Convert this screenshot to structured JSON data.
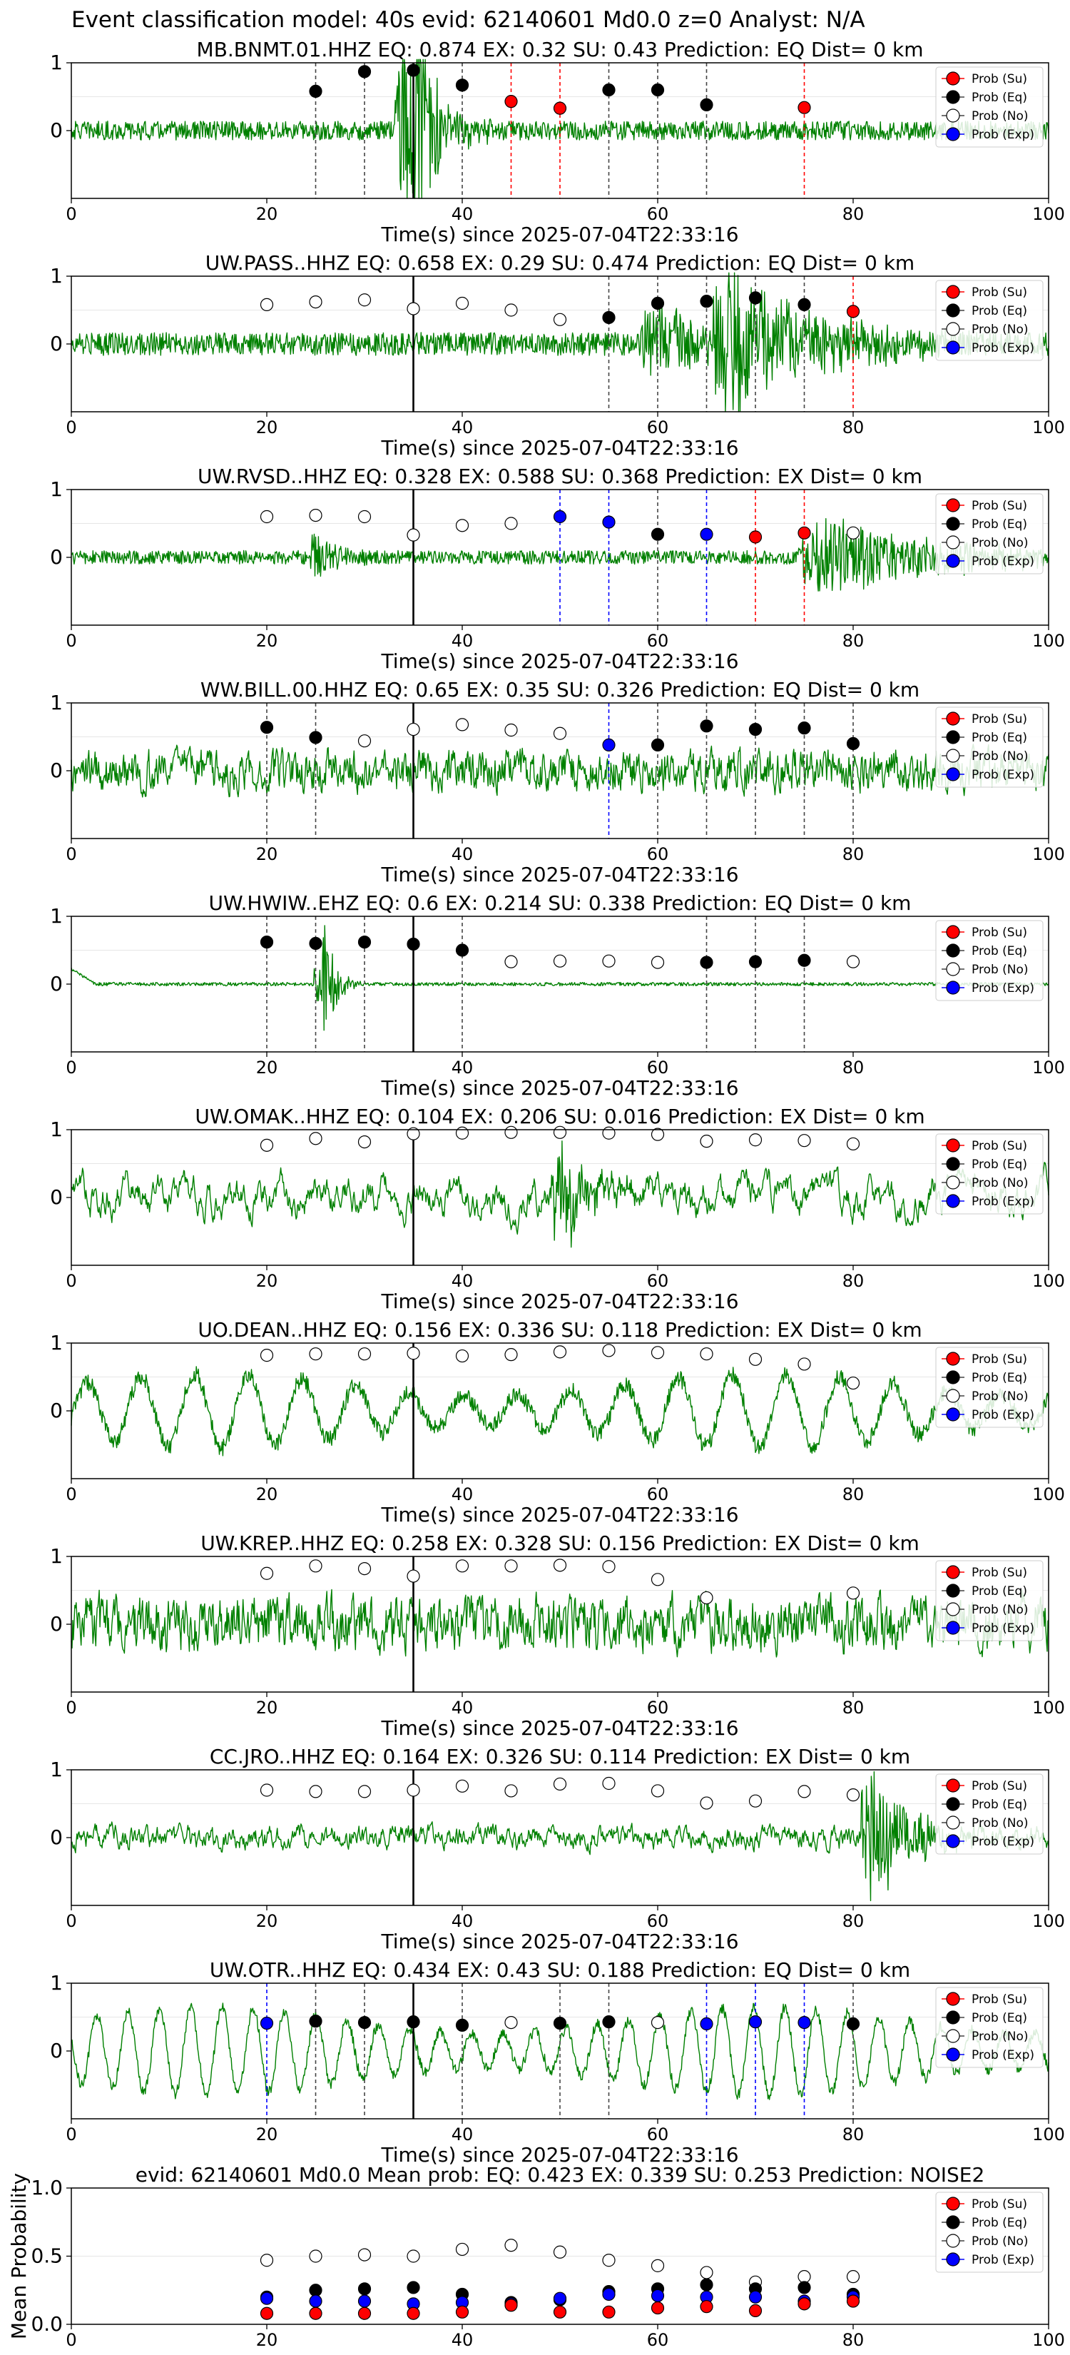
{
  "figure_title": "Event classification model: 40s evid: 62140601 Md0.0 z=0 Analyst: N/A",
  "legend_labels": [
    "Prob (Su)",
    "Prob (Eq)",
    "Prob (No)",
    "Prob (Exp)"
  ],
  "colors": {
    "su": "#ff0000",
    "eq": "#000000",
    "no": "#ffffff",
    "exp": "#0000ff",
    "waveform": "#008000",
    "pick_line": "#000000",
    "grid": "#e6e6e6"
  },
  "chart_data": [
    {
      "type": "line",
      "title": "MB.BNMT.01.HHZ   EQ: 0.874  EX: 0.32  SU: 0.43   Prediction: EQ    Dist= 0 km",
      "xlabel": "Time(s) since 2025-07-04T22:33:16",
      "xlim": [
        0,
        100
      ],
      "ylim": [
        -1,
        1
      ],
      "xticks": [
        "0",
        "20",
        "40",
        "60",
        "80",
        "100"
      ],
      "yticks": [
        "0",
        "1"
      ],
      "pick_time": 35,
      "waveform": {
        "noise": 0.14,
        "smooth": 1,
        "events": [
          {
            "t": 34,
            "a": 0.9,
            "d": 3
          },
          {
            "t": 35.5,
            "a": 1.3,
            "d": 1.5
          }
        ]
      },
      "points": [
        {
          "x": 25,
          "y": 0.58,
          "cls": "eq"
        },
        {
          "x": 30,
          "y": 0.87,
          "cls": "eq"
        },
        {
          "x": 35,
          "y": 0.89,
          "cls": "eq"
        },
        {
          "x": 40,
          "y": 0.67,
          "cls": "eq"
        },
        {
          "x": 45,
          "y": 0.43,
          "cls": "su"
        },
        {
          "x": 50,
          "y": 0.33,
          "cls": "su"
        },
        {
          "x": 55,
          "y": 0.6,
          "cls": "eq"
        },
        {
          "x": 60,
          "y": 0.6,
          "cls": "eq"
        },
        {
          "x": 65,
          "y": 0.38,
          "cls": "eq"
        },
        {
          "x": 75,
          "y": 0.34,
          "cls": "su"
        }
      ]
    },
    {
      "type": "line",
      "title": "UW.PASS..HHZ   EQ: 0.658  EX: 0.29  SU: 0.474   Prediction: EQ    Dist= 0 km",
      "xlabel": "Time(s) since 2025-07-04T22:33:16",
      "xlim": [
        0,
        100
      ],
      "ylim": [
        -1,
        1
      ],
      "xticks": [
        "0",
        "20",
        "40",
        "60",
        "80",
        "100"
      ],
      "yticks": [
        "0",
        "1"
      ],
      "pick_time": 35,
      "waveform": {
        "noise": 0.17,
        "smooth": 1,
        "events": [
          {
            "t": 68,
            "a": 0.7,
            "d": 8
          },
          {
            "t": 60,
            "a": 0.35,
            "d": 6
          }
        ]
      },
      "points": [
        {
          "x": 20,
          "y": 0.58,
          "cls": "no"
        },
        {
          "x": 25,
          "y": 0.62,
          "cls": "no"
        },
        {
          "x": 30,
          "y": 0.65,
          "cls": "no"
        },
        {
          "x": 35,
          "y": 0.52,
          "cls": "no"
        },
        {
          "x": 40,
          "y": 0.6,
          "cls": "no"
        },
        {
          "x": 45,
          "y": 0.5,
          "cls": "no"
        },
        {
          "x": 50,
          "y": 0.36,
          "cls": "no"
        },
        {
          "x": 55,
          "y": 0.39,
          "cls": "eq"
        },
        {
          "x": 60,
          "y": 0.6,
          "cls": "eq"
        },
        {
          "x": 65,
          "y": 0.63,
          "cls": "eq"
        },
        {
          "x": 70,
          "y": 0.68,
          "cls": "eq"
        },
        {
          "x": 75,
          "y": 0.58,
          "cls": "eq"
        },
        {
          "x": 80,
          "y": 0.48,
          "cls": "su"
        }
      ]
    },
    {
      "type": "line",
      "title": "UW.RVSD..HHZ   EQ: 0.328  EX: 0.588  SU: 0.368   Prediction: EX    Dist= 0 km",
      "xlabel": "Time(s) since 2025-07-04T22:33:16",
      "xlim": [
        0,
        100
      ],
      "ylim": [
        -1,
        1
      ],
      "xticks": [
        "0",
        "20",
        "40",
        "60",
        "80",
        "100"
      ],
      "yticks": [
        "0",
        "1"
      ],
      "pick_time": 35,
      "waveform": {
        "noise": 0.1,
        "smooth": 1,
        "events": [
          {
            "t": 78,
            "a": 0.35,
            "d": 12
          },
          {
            "t": 25,
            "a": 0.25,
            "d": 2
          }
        ]
      },
      "points": [
        {
          "x": 20,
          "y": 0.6,
          "cls": "no"
        },
        {
          "x": 25,
          "y": 0.62,
          "cls": "no"
        },
        {
          "x": 30,
          "y": 0.6,
          "cls": "no"
        },
        {
          "x": 35,
          "y": 0.33,
          "cls": "no"
        },
        {
          "x": 40,
          "y": 0.47,
          "cls": "no"
        },
        {
          "x": 45,
          "y": 0.5,
          "cls": "no"
        },
        {
          "x": 50,
          "y": 0.6,
          "cls": "exp"
        },
        {
          "x": 55,
          "y": 0.52,
          "cls": "exp"
        },
        {
          "x": 60,
          "y": 0.34,
          "cls": "eq"
        },
        {
          "x": 65,
          "y": 0.34,
          "cls": "exp"
        },
        {
          "x": 70,
          "y": 0.3,
          "cls": "su"
        },
        {
          "x": 75,
          "y": 0.36,
          "cls": "su"
        },
        {
          "x": 80,
          "y": 0.36,
          "cls": "no"
        }
      ]
    },
    {
      "type": "line",
      "title": "WW.BILL.00.HHZ   EQ: 0.65  EX: 0.35  SU: 0.326   Prediction: EQ    Dist= 0 km",
      "xlabel": "Time(s) since 2025-07-04T22:33:16",
      "xlim": [
        0,
        100
      ],
      "ylim": [
        -1,
        1
      ],
      "xticks": [
        "0",
        "20",
        "40",
        "60",
        "80",
        "100"
      ],
      "yticks": [
        "0",
        "1"
      ],
      "pick_time": 35,
      "waveform": {
        "noise": 0.38,
        "smooth": 2,
        "events": []
      },
      "points": [
        {
          "x": 20,
          "y": 0.64,
          "cls": "eq"
        },
        {
          "x": 25,
          "y": 0.49,
          "cls": "eq"
        },
        {
          "x": 30,
          "y": 0.44,
          "cls": "no"
        },
        {
          "x": 35,
          "y": 0.61,
          "cls": "no"
        },
        {
          "x": 40,
          "y": 0.68,
          "cls": "no"
        },
        {
          "x": 45,
          "y": 0.6,
          "cls": "no"
        },
        {
          "x": 50,
          "y": 0.55,
          "cls": "no"
        },
        {
          "x": 55,
          "y": 0.38,
          "cls": "exp"
        },
        {
          "x": 60,
          "y": 0.38,
          "cls": "eq"
        },
        {
          "x": 65,
          "y": 0.66,
          "cls": "eq"
        },
        {
          "x": 70,
          "y": 0.61,
          "cls": "eq"
        },
        {
          "x": 75,
          "y": 0.63,
          "cls": "eq"
        },
        {
          "x": 80,
          "y": 0.4,
          "cls": "eq"
        }
      ]
    },
    {
      "type": "line",
      "title": "UW.HWIW..EHZ   EQ: 0.6  EX: 0.214  SU: 0.338   Prediction: EQ    Dist= 0 km",
      "xlabel": "Time(s) since 2025-07-04T22:33:16",
      "xlim": [
        0,
        100
      ],
      "ylim": [
        -1,
        1
      ],
      "xticks": [
        "0",
        "20",
        "40",
        "60",
        "80",
        "100"
      ],
      "yticks": [
        "0",
        "1"
      ],
      "pick_time": 35,
      "waveform": {
        "noise": 0.025,
        "smooth": 1,
        "start": 0.22,
        "events": [
          {
            "t": 26,
            "a": 0.55,
            "d": 1.2
          },
          {
            "t": 25,
            "a": 0.3,
            "d": 0.6
          }
        ]
      },
      "points": [
        {
          "x": 20,
          "y": 0.62,
          "cls": "eq"
        },
        {
          "x": 25,
          "y": 0.6,
          "cls": "eq"
        },
        {
          "x": 30,
          "y": 0.62,
          "cls": "eq"
        },
        {
          "x": 35,
          "y": 0.59,
          "cls": "eq"
        },
        {
          "x": 40,
          "y": 0.5,
          "cls": "eq"
        },
        {
          "x": 45,
          "y": 0.33,
          "cls": "no"
        },
        {
          "x": 50,
          "y": 0.34,
          "cls": "no"
        },
        {
          "x": 55,
          "y": 0.34,
          "cls": "no"
        },
        {
          "x": 60,
          "y": 0.32,
          "cls": "no"
        },
        {
          "x": 65,
          "y": 0.32,
          "cls": "eq"
        },
        {
          "x": 70,
          "y": 0.33,
          "cls": "eq"
        },
        {
          "x": 75,
          "y": 0.35,
          "cls": "eq"
        },
        {
          "x": 80,
          "y": 0.33,
          "cls": "no"
        }
      ]
    },
    {
      "type": "line",
      "title": "UW.OMAK..HHZ   EQ: 0.104  EX: 0.206  SU: 0.016   Prediction: EX    Dist= 0 km",
      "xlabel": "Time(s) since 2025-07-04T22:33:16",
      "xlim": [
        0,
        100
      ],
      "ylim": [
        -1,
        1
      ],
      "xticks": [
        "0",
        "20",
        "40",
        "60",
        "80",
        "100"
      ],
      "yticks": [
        "0",
        "1"
      ],
      "pick_time": 35,
      "waveform": {
        "noise": 0.45,
        "smooth": 7,
        "events": [
          {
            "t": 50,
            "a": 0.5,
            "d": 3
          }
        ]
      },
      "points": [
        {
          "x": 20,
          "y": 0.77,
          "cls": "no"
        },
        {
          "x": 25,
          "y": 0.87,
          "cls": "no"
        },
        {
          "x": 30,
          "y": 0.82,
          "cls": "no"
        },
        {
          "x": 35,
          "y": 0.94,
          "cls": "no"
        },
        {
          "x": 40,
          "y": 0.95,
          "cls": "no"
        },
        {
          "x": 45,
          "y": 0.96,
          "cls": "no"
        },
        {
          "x": 50,
          "y": 0.96,
          "cls": "no"
        },
        {
          "x": 55,
          "y": 0.95,
          "cls": "no"
        },
        {
          "x": 60,
          "y": 0.93,
          "cls": "no"
        },
        {
          "x": 65,
          "y": 0.83,
          "cls": "no"
        },
        {
          "x": 70,
          "y": 0.85,
          "cls": "no"
        },
        {
          "x": 75,
          "y": 0.84,
          "cls": "no"
        },
        {
          "x": 80,
          "y": 0.79,
          "cls": "no"
        }
      ]
    },
    {
      "type": "line",
      "title": "UO.DEAN..HHZ   EQ: 0.156  EX: 0.336  SU: 0.118   Prediction: EX    Dist= 0 km",
      "xlabel": "Time(s) since 2025-07-04T22:33:16",
      "xlim": [
        0,
        100
      ],
      "ylim": [
        -1,
        1
      ],
      "xticks": [
        "0",
        "20",
        "40",
        "60",
        "80",
        "100"
      ],
      "yticks": [
        "0",
        "1"
      ],
      "pick_time": 35,
      "waveform": {
        "noise": 0.12,
        "smooth": 1,
        "wave": 0.55,
        "period": 5.5,
        "events": []
      },
      "points": [
        {
          "x": 20,
          "y": 0.82,
          "cls": "no"
        },
        {
          "x": 25,
          "y": 0.84,
          "cls": "no"
        },
        {
          "x": 30,
          "y": 0.84,
          "cls": "no"
        },
        {
          "x": 35,
          "y": 0.85,
          "cls": "no"
        },
        {
          "x": 40,
          "y": 0.81,
          "cls": "no"
        },
        {
          "x": 45,
          "y": 0.83,
          "cls": "no"
        },
        {
          "x": 50,
          "y": 0.87,
          "cls": "no"
        },
        {
          "x": 55,
          "y": 0.89,
          "cls": "no"
        },
        {
          "x": 60,
          "y": 0.86,
          "cls": "no"
        },
        {
          "x": 65,
          "y": 0.84,
          "cls": "no"
        },
        {
          "x": 70,
          "y": 0.76,
          "cls": "no"
        },
        {
          "x": 75,
          "y": 0.69,
          "cls": "no"
        },
        {
          "x": 80,
          "y": 0.41,
          "cls": "no"
        }
      ]
    },
    {
      "type": "line",
      "title": "UW.KREP..HHZ   EQ: 0.258  EX: 0.328  SU: 0.156   Prediction: EX    Dist= 0 km",
      "xlabel": "Time(s) since 2025-07-04T22:33:16",
      "xlim": [
        0,
        100
      ],
      "ylim": [
        -1,
        1
      ],
      "xticks": [
        "0",
        "20",
        "40",
        "60",
        "80",
        "100"
      ],
      "yticks": [
        "0",
        "1"
      ],
      "pick_time": 35,
      "waveform": {
        "noise": 0.5,
        "smooth": 2,
        "events": []
      },
      "points": [
        {
          "x": 20,
          "y": 0.75,
          "cls": "no"
        },
        {
          "x": 25,
          "y": 0.86,
          "cls": "no"
        },
        {
          "x": 30,
          "y": 0.82,
          "cls": "no"
        },
        {
          "x": 35,
          "y": 0.71,
          "cls": "no"
        },
        {
          "x": 40,
          "y": 0.86,
          "cls": "no"
        },
        {
          "x": 45,
          "y": 0.86,
          "cls": "no"
        },
        {
          "x": 50,
          "y": 0.87,
          "cls": "no"
        },
        {
          "x": 55,
          "y": 0.85,
          "cls": "no"
        },
        {
          "x": 60,
          "y": 0.66,
          "cls": "no"
        },
        {
          "x": 65,
          "y": 0.39,
          "cls": "no"
        },
        {
          "x": 80,
          "y": 0.46,
          "cls": "no"
        }
      ]
    },
    {
      "type": "line",
      "title": "CC.JRO..HHZ   EQ: 0.164  EX: 0.326  SU: 0.114   Prediction: EX    Dist= 0 km",
      "xlabel": "Time(s) since 2025-07-04T22:33:16",
      "xlim": [
        0,
        100
      ],
      "ylim": [
        -1,
        1
      ],
      "xticks": [
        "0",
        "20",
        "40",
        "60",
        "80",
        "100"
      ],
      "yticks": [
        "0",
        "1"
      ],
      "pick_time": 35,
      "waveform": {
        "noise": 0.22,
        "smooth": 3,
        "events": [
          {
            "t": 82,
            "a": 0.6,
            "d": 4
          }
        ]
      },
      "points": [
        {
          "x": 20,
          "y": 0.7,
          "cls": "no"
        },
        {
          "x": 25,
          "y": 0.68,
          "cls": "no"
        },
        {
          "x": 30,
          "y": 0.68,
          "cls": "no"
        },
        {
          "x": 35,
          "y": 0.7,
          "cls": "no"
        },
        {
          "x": 40,
          "y": 0.76,
          "cls": "no"
        },
        {
          "x": 45,
          "y": 0.69,
          "cls": "no"
        },
        {
          "x": 50,
          "y": 0.79,
          "cls": "no"
        },
        {
          "x": 55,
          "y": 0.8,
          "cls": "no"
        },
        {
          "x": 60,
          "y": 0.69,
          "cls": "no"
        },
        {
          "x": 65,
          "y": 0.51,
          "cls": "no"
        },
        {
          "x": 70,
          "y": 0.54,
          "cls": "no"
        },
        {
          "x": 75,
          "y": 0.68,
          "cls": "no"
        },
        {
          "x": 80,
          "y": 0.63,
          "cls": "no"
        }
      ]
    },
    {
      "type": "line",
      "title": "UW.OTR..HHZ   EQ: 0.434  EX: 0.43  SU: 0.188   Prediction: EQ    Dist= 0 km",
      "xlabel": "Time(s) since 2025-07-04T22:33:16",
      "xlim": [
        0,
        100
      ],
      "ylim": [
        -1,
        1
      ],
      "xticks": [
        "0",
        "20",
        "40",
        "60",
        "80",
        "100"
      ],
      "yticks": [
        "0",
        "1"
      ],
      "pick_time": 35,
      "waveform": {
        "noise": 0.08,
        "smooth": 1,
        "wave": 0.65,
        "period": 3.2,
        "events": []
      },
      "points": [
        {
          "x": 20,
          "y": 0.41,
          "cls": "exp"
        },
        {
          "x": 25,
          "y": 0.44,
          "cls": "eq"
        },
        {
          "x": 30,
          "y": 0.42,
          "cls": "eq"
        },
        {
          "x": 35,
          "y": 0.43,
          "cls": "eq"
        },
        {
          "x": 40,
          "y": 0.38,
          "cls": "eq"
        },
        {
          "x": 45,
          "y": 0.42,
          "cls": "no"
        },
        {
          "x": 50,
          "y": 0.41,
          "cls": "eq"
        },
        {
          "x": 55,
          "y": 0.43,
          "cls": "eq"
        },
        {
          "x": 60,
          "y": 0.42,
          "cls": "no"
        },
        {
          "x": 65,
          "y": 0.4,
          "cls": "exp"
        },
        {
          "x": 70,
          "y": 0.43,
          "cls": "exp"
        },
        {
          "x": 75,
          "y": 0.42,
          "cls": "exp"
        },
        {
          "x": 80,
          "y": 0.4,
          "cls": "eq"
        }
      ]
    },
    {
      "type": "scatter",
      "title": "evid: 62140601  Md0.0   Mean prob:   EQ: 0.423  EX: 0.339  SU: 0.253   Prediction: NOISE2",
      "ylabel": "Mean Probability",
      "xlim": [
        0,
        100
      ],
      "ylim": [
        0,
        1
      ],
      "xticks": [
        "0",
        "20",
        "40",
        "60",
        "80",
        "100"
      ],
      "yticks": [
        "0.0",
        "0.5",
        "1.0"
      ],
      "x": [
        20,
        25,
        30,
        35,
        40,
        45,
        50,
        55,
        60,
        65,
        70,
        75,
        80
      ],
      "series": [
        {
          "cls": "no",
          "values": [
            0.47,
            0.5,
            0.51,
            0.5,
            0.55,
            0.58,
            0.53,
            0.47,
            0.43,
            0.38,
            0.31,
            0.35,
            0.35
          ]
        },
        {
          "cls": "eq",
          "values": [
            0.2,
            0.25,
            0.26,
            0.27,
            0.22,
            0.16,
            0.18,
            0.24,
            0.26,
            0.29,
            0.26,
            0.27,
            0.22
          ]
        },
        {
          "cls": "exp",
          "values": [
            0.19,
            0.17,
            0.17,
            0.15,
            0.16,
            0.15,
            0.19,
            0.22,
            0.21,
            0.2,
            0.2,
            0.17,
            0.2
          ]
        },
        {
          "cls": "su",
          "values": [
            0.08,
            0.08,
            0.08,
            0.08,
            0.09,
            0.14,
            0.09,
            0.09,
            0.12,
            0.13,
            0.1,
            0.15,
            0.17
          ]
        }
      ]
    }
  ]
}
